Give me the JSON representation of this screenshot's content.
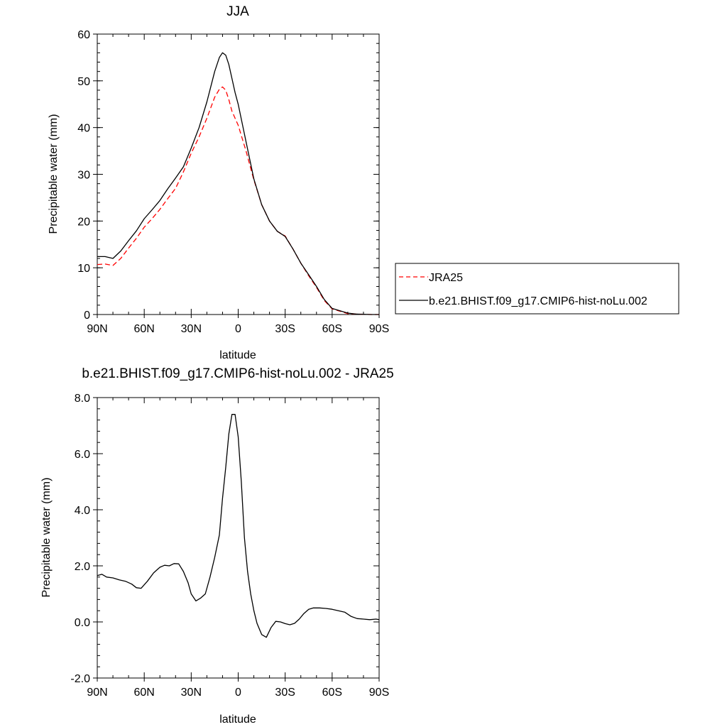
{
  "chart_data": [
    {
      "type": "line",
      "title": "JJA",
      "xlabel": "latitude",
      "ylabel": "Precipitable water (mm)",
      "xlim": [
        90,
        -90
      ],
      "ylim": [
        0,
        60
      ],
      "x_ticks": [
        90,
        60,
        30,
        0,
        -30,
        -60,
        -90
      ],
      "x_tick_labels": [
        "90N",
        "60N",
        "30N",
        "0",
        "30S",
        "60S",
        "90S"
      ],
      "y_ticks": [
        0,
        10,
        20,
        30,
        40,
        50,
        60
      ],
      "y_tick_labels": [
        "0",
        "10",
        "20",
        "30",
        "40",
        "50",
        "60"
      ],
      "legend_position": "right",
      "series": [
        {
          "name": "JRA25",
          "color": "#ff0000",
          "dash": "dashed",
          "x": [
            90,
            85,
            80,
            75,
            70,
            65,
            60,
            55,
            50,
            45,
            40,
            35,
            30,
            25,
            20,
            15,
            12,
            10,
            8,
            6,
            4,
            2,
            0,
            -5,
            -10,
            -15,
            -20,
            -25,
            -30,
            -35,
            -40,
            -45,
            -50,
            -55,
            -60,
            -65,
            -70,
            -75,
            -80,
            -85,
            -90
          ],
          "y": [
            10.7,
            10.8,
            10.5,
            12.0,
            14.2,
            16.3,
            18.7,
            20.5,
            22.5,
            24.8,
            27.0,
            30.5,
            34.5,
            38.0,
            42.0,
            46.5,
            48.2,
            48.7,
            48.0,
            46.0,
            43.5,
            42.0,
            40.5,
            35.0,
            28.8,
            23.5,
            20.0,
            17.8,
            16.8,
            14.0,
            11.0,
            8.3,
            5.8,
            3.0,
            1.2,
            0.7,
            0.2,
            0.1,
            0.05,
            0.0,
            0.0
          ]
        },
        {
          "name": "b.e21.BHIST.f09_g17.CMIP6-hist-noLu.002",
          "color": "#000000",
          "dash": "solid",
          "x": [
            90,
            85,
            80,
            75,
            70,
            65,
            60,
            55,
            50,
            45,
            40,
            35,
            30,
            25,
            20,
            15,
            12,
            10,
            8,
            6,
            4,
            2,
            0,
            -5,
            -10,
            -15,
            -20,
            -25,
            -30,
            -35,
            -40,
            -45,
            -50,
            -55,
            -60,
            -65,
            -70,
            -75,
            -80,
            -85,
            -90
          ],
          "y": [
            12.4,
            12.4,
            12.0,
            13.6,
            15.8,
            17.9,
            20.5,
            22.4,
            24.4,
            26.9,
            29.2,
            31.6,
            35.6,
            40.0,
            45.5,
            52.0,
            55.0,
            56.0,
            55.5,
            53.5,
            50.5,
            47.5,
            45.0,
            37.0,
            29.0,
            23.5,
            20.0,
            17.8,
            16.7,
            14.0,
            11.0,
            8.5,
            6.0,
            3.2,
            1.3,
            0.8,
            0.3,
            0.1,
            0.05,
            0.0,
            0.0
          ]
        }
      ]
    },
    {
      "type": "line",
      "title": "b.e21.BHIST.f09_g17.CMIP6-hist-noLu.002 - JRA25",
      "xlabel": "latitude",
      "ylabel": "Precipitable water (mm)",
      "xlim": [
        90,
        -90
      ],
      "ylim": [
        -2,
        8
      ],
      "x_ticks": [
        90,
        60,
        30,
        0,
        -30,
        -60,
        -90
      ],
      "x_tick_labels": [
        "90N",
        "60N",
        "30N",
        "0",
        "30S",
        "60S",
        "90S"
      ],
      "y_ticks": [
        -2,
        0,
        2,
        4,
        6,
        8
      ],
      "y_tick_labels": [
        "-2.0",
        "0.0",
        "2.0",
        "4.0",
        "6.0",
        "8.0"
      ],
      "series": [
        {
          "color": "#000000",
          "dash": "solid",
          "x": [
            90,
            87,
            84,
            80,
            76,
            72,
            68,
            65,
            62,
            58,
            54,
            50,
            47,
            44,
            41,
            38,
            35,
            32,
            30,
            27,
            24,
            21,
            18,
            15,
            12,
            10,
            8,
            6,
            4,
            2,
            0,
            -2,
            -4,
            -6,
            -8,
            -10,
            -12,
            -15,
            -18,
            -21,
            -24,
            -27,
            -30,
            -33,
            -36,
            -39,
            -42,
            -45,
            -48,
            -52,
            -56,
            -60,
            -64,
            -68,
            -72,
            -76,
            -80,
            -84,
            -88,
            -90
          ],
          "y": [
            1.65,
            1.7,
            1.6,
            1.57,
            1.5,
            1.45,
            1.35,
            1.22,
            1.2,
            1.45,
            1.75,
            1.95,
            2.02,
            2.0,
            2.08,
            2.07,
            1.8,
            1.4,
            1.0,
            0.75,
            0.85,
            1.0,
            1.6,
            2.3,
            3.1,
            4.4,
            5.5,
            6.7,
            7.4,
            7.4,
            6.6,
            5.0,
            3.0,
            1.8,
            1.0,
            0.4,
            -0.05,
            -0.45,
            -0.55,
            -0.2,
            0.02,
            0.0,
            -0.06,
            -0.1,
            -0.05,
            0.1,
            0.3,
            0.45,
            0.5,
            0.5,
            0.48,
            0.45,
            0.4,
            0.35,
            0.2,
            0.12,
            0.1,
            0.08,
            0.1,
            0.08
          ]
        }
      ]
    }
  ]
}
